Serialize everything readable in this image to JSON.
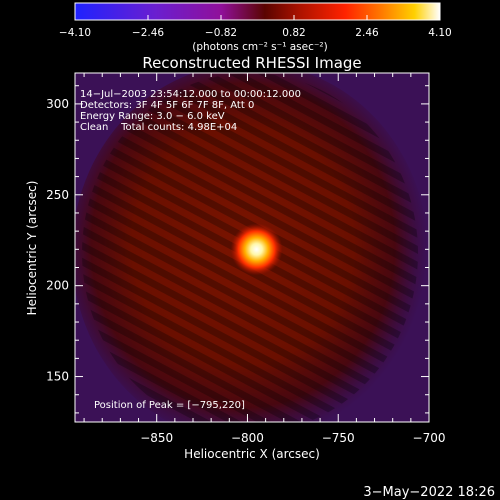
{
  "chart_data": {
    "type": "heatmap",
    "title": "Reconstructed RHESSI Image",
    "xlabel": "Heliocentric X (arcsec)",
    "ylabel": "Heliocentric Y (arcsec)",
    "x_ticks": [
      -850,
      -800,
      -750,
      -700
    ],
    "x_tick_labels": [
      "−850",
      "−800",
      "−750",
      "−700"
    ],
    "y_ticks": [
      150,
      200,
      250,
      300
    ],
    "y_tick_labels": [
      "150",
      "200",
      "250",
      "300"
    ],
    "xlim": [
      -895,
      -700
    ],
    "ylim": [
      125,
      317
    ],
    "colorbar": {
      "ticks": [
        -4.1,
        -2.46,
        -0.82,
        0.82,
        2.46,
        4.1
      ],
      "tick_labels": [
        "−4.10",
        "−2.46",
        "−0.82",
        "0.82",
        "2.46",
        "4.10"
      ],
      "range": [
        -4.1,
        4.1
      ],
      "unit_label": "(photons cm⁻² s⁻¹ asec⁻²)"
    },
    "annotations": [
      "14−Jul−2003 23:54:12.000 to 00:00:12.000",
      "Detectors: 3F 4F 5F 6F 7F 8F, Att 0",
      "Energy Range: 3.0 − 6.0 keV",
      "Clean    Total counts: 4.98E+04"
    ],
    "peak_label": "Position of Peak = [−795,220]",
    "peak": {
      "x": -795,
      "y": 220
    },
    "footer_date": "3−May−2022 18:26"
  }
}
